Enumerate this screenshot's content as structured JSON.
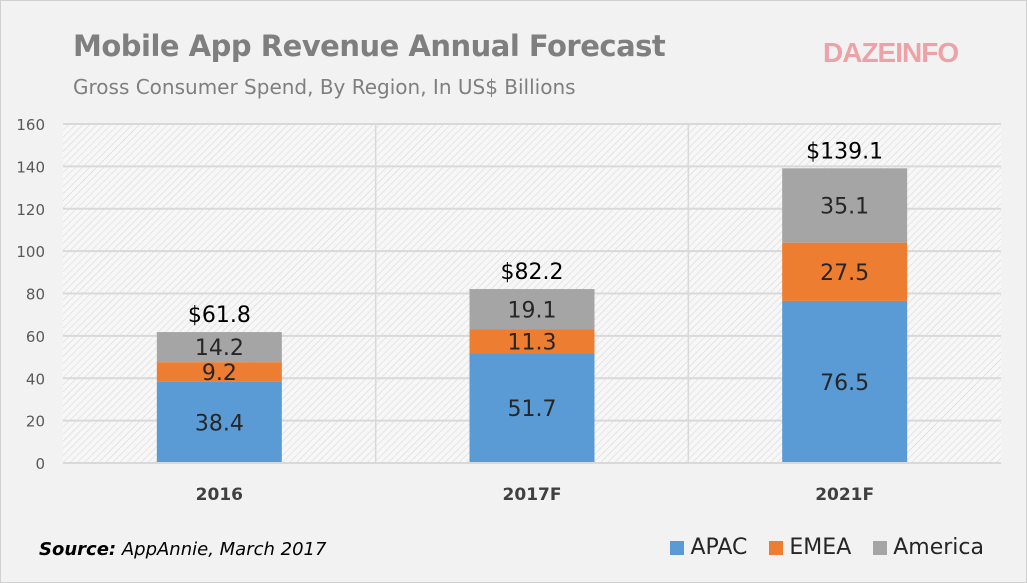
{
  "chart_data": {
    "type": "bar",
    "stacked": true,
    "title": "Mobile App Revenue Annual Forecast",
    "subtitle": "Gross Consumer Spend, By Region, In US$ Billions",
    "categories": [
      "2016",
      "2017F",
      "2021F"
    ],
    "series": [
      {
        "name": "APAC",
        "color": "#5b9bd5",
        "values": [
          38.4,
          51.7,
          76.5
        ]
      },
      {
        "name": "EMEA",
        "color": "#ed7d31",
        "values": [
          9.2,
          11.3,
          27.5
        ]
      },
      {
        "name": "America",
        "color": "#a5a5a5",
        "values": [
          14.2,
          19.1,
          35.1
        ]
      }
    ],
    "totals": [
      "$61.8",
      "$82.2",
      "$139.1"
    ],
    "ylim": [
      0,
      160
    ],
    "yticks": [
      0,
      20,
      40,
      60,
      80,
      100,
      120,
      140,
      160
    ],
    "grid": true,
    "legend": "bottom-right"
  },
  "logo": "DAZEINFO",
  "source": {
    "label": "Source:",
    "text": " AppAnnie, March 2017"
  }
}
